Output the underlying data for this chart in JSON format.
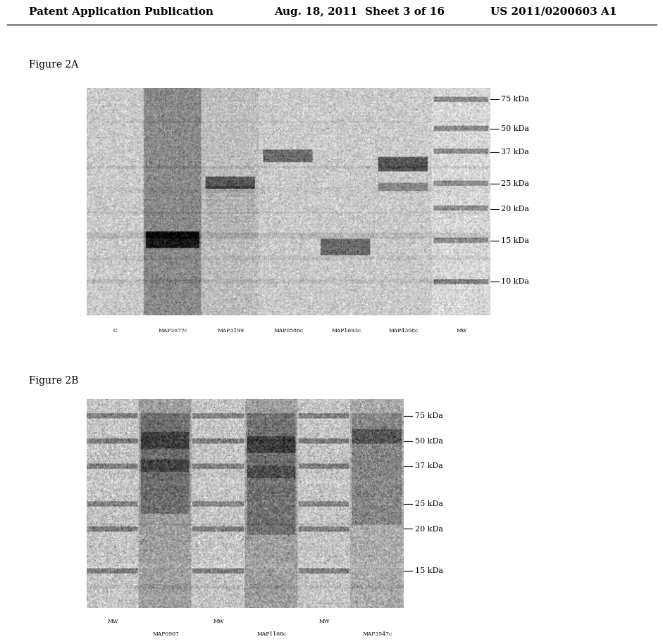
{
  "page_header_left": "Patent Application Publication",
  "page_header_mid": "Aug. 18, 2011  Sheet 3 of 16",
  "page_header_right": "US 2011/0200603 A1",
  "fig2a_label": "Figure 2A",
  "fig2b_label": "Figure 2B",
  "fig2a_lane_labels": [
    "C",
    "MAP2677c",
    "MAP3199",
    "MAP0586c",
    "MAP1693c",
    "MAP4308c",
    "MW"
  ],
  "fig2b_lane_labels_row1": [
    "MW",
    "",
    "MW",
    "",
    "MW",
    ""
  ],
  "fig2b_lane_labels_row2": [
    "",
    "MAP0907",
    "",
    "MAP1168c",
    "",
    "MAP3547c"
  ],
  "mw_labels_2a": [
    "75 kDa",
    "50 kDa",
    "37 kDa",
    "25 kDa",
    "20 kDa",
    "15 kDa",
    "10 kDa"
  ],
  "mw_labels_2b": [
    "75 kDa",
    "50 kDa",
    "37 kDa",
    "25 kDa",
    "20 kDa",
    "15 kDa"
  ],
  "background_color": "#ffffff",
  "header_fontsize": 11,
  "figure_label_fontsize": 10,
  "lane_label_fontsize": 6,
  "mw_label_fontsize": 8
}
